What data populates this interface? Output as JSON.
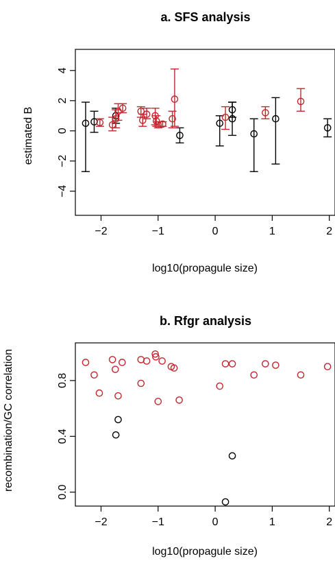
{
  "colors": {
    "black": "#000000",
    "red": "#c0272d"
  },
  "chart_data": [
    {
      "type": "scatter",
      "title": "a. SFS analysis",
      "xlabel": "log10(propagule size)",
      "ylabel": "estimated B",
      "xlim": [
        -2.45,
        2.1
      ],
      "ylim": [
        -5.6,
        5.4
      ],
      "xticks": [
        -2,
        -1,
        0,
        1,
        2
      ],
      "xtick_labels": [
        "−2",
        "−1",
        "0",
        "1",
        "2"
      ],
      "yticks": [
        -4,
        -2,
        0,
        2,
        4
      ],
      "ytick_labels": [
        "−4",
        "−2",
        "0",
        "2",
        "4"
      ],
      "grid": false,
      "series": [
        {
          "color": "black",
          "points": [
            {
              "x": -2.27,
              "y": 0.5,
              "lo": -2.7,
              "hi": 1.9
            },
            {
              "x": -2.12,
              "y": 0.6,
              "lo": -0.1,
              "hi": 1.3
            },
            {
              "x": -1.74,
              "y": 1.0,
              "lo": 0.5,
              "hi": 1.5
            },
            {
              "x": -0.62,
              "y": -0.3,
              "lo": -0.8,
              "hi": 0.2
            },
            {
              "x": 0.08,
              "y": 0.5,
              "lo": -1.0,
              "hi": 1.0
            },
            {
              "x": 0.3,
              "y": 0.8,
              "lo": -0.3,
              "hi": 1.9
            },
            {
              "x": 0.3,
              "y": 1.4,
              "lo": 0.9,
              "hi": 1.9
            },
            {
              "x": 0.68,
              "y": -0.2,
              "lo": -2.7,
              "hi": 0.8
            },
            {
              "x": 1.06,
              "y": 0.8,
              "lo": -2.2,
              "hi": 2.2
            },
            {
              "x": 1.97,
              "y": 0.2,
              "lo": -0.4,
              "hi": 0.8
            }
          ]
        },
        {
          "color": "red",
          "points": [
            {
              "x": -2.02,
              "y": 0.55,
              "lo": 0.3,
              "hi": 0.8
            },
            {
              "x": -1.8,
              "y": 0.4,
              "lo": 0.0,
              "hi": 0.9
            },
            {
              "x": -1.74,
              "y": 0.8,
              "lo": 0.2,
              "hi": 1.4
            },
            {
              "x": -1.7,
              "y": 1.3,
              "lo": 0.7,
              "hi": 1.8
            },
            {
              "x": -1.62,
              "y": 1.5,
              "lo": 1.2,
              "hi": 1.8
            },
            {
              "x": -1.3,
              "y": 1.3,
              "lo": 0.9,
              "hi": 1.6
            },
            {
              "x": -1.27,
              "y": 0.7,
              "lo": 0.3,
              "hi": 1.1
            },
            {
              "x": -1.2,
              "y": 1.1,
              "lo": 0.8,
              "hi": 1.5
            },
            {
              "x": -1.05,
              "y": 1.0,
              "lo": 0.4,
              "hi": 1.5
            },
            {
              "x": -1.03,
              "y": 0.65,
              "lo": 0.3,
              "hi": 1.0
            },
            {
              "x": -1.0,
              "y": 0.4,
              "lo": 0.2,
              "hi": 0.6
            },
            {
              "x": -0.92,
              "y": 0.45,
              "lo": 0.3,
              "hi": 0.6
            },
            {
              "x": -0.75,
              "y": 0.8,
              "lo": 0.2,
              "hi": 1.3
            },
            {
              "x": -0.71,
              "y": 2.1,
              "lo": 0.3,
              "hi": 4.1
            },
            {
              "x": 0.18,
              "y": 0.9,
              "lo": 0.1,
              "hi": 1.6
            },
            {
              "x": 0.88,
              "y": 1.2,
              "lo": 0.8,
              "hi": 1.6
            },
            {
              "x": 1.5,
              "y": 1.95,
              "lo": 1.3,
              "hi": 2.8
            }
          ]
        }
      ]
    },
    {
      "type": "scatter",
      "title": "b. Rfgr analysis",
      "xlabel": "log10(propagule size)",
      "ylabel": "recombination/GC correlation",
      "xlim": [
        -2.45,
        2.1
      ],
      "ylim": [
        -0.1,
        1.07
      ],
      "xticks": [
        -2,
        -1,
        0,
        1,
        2
      ],
      "xtick_labels": [
        "−2",
        "−1",
        "0",
        "1",
        "2"
      ],
      "yticks": [
        0.0,
        0.4,
        0.8
      ],
      "ytick_labels": [
        "0.0",
        "0.4",
        "0.8"
      ],
      "grid": false,
      "series": [
        {
          "color": "red",
          "points": [
            {
              "x": -2.27,
              "y": 0.93
            },
            {
              "x": -2.12,
              "y": 0.84
            },
            {
              "x": -2.03,
              "y": 0.71
            },
            {
              "x": -1.8,
              "y": 0.95
            },
            {
              "x": -1.75,
              "y": 0.88
            },
            {
              "x": -1.7,
              "y": 0.69
            },
            {
              "x": -1.63,
              "y": 0.93
            },
            {
              "x": -1.3,
              "y": 0.95
            },
            {
              "x": -1.3,
              "y": 0.78
            },
            {
              "x": -1.2,
              "y": 0.94
            },
            {
              "x": -1.05,
              "y": 0.99
            },
            {
              "x": -1.04,
              "y": 0.97
            },
            {
              "x": -1.0,
              "y": 0.65
            },
            {
              "x": -0.93,
              "y": 0.94
            },
            {
              "x": -0.77,
              "y": 0.9
            },
            {
              "x": -0.72,
              "y": 0.89
            },
            {
              "x": -0.63,
              "y": 0.66
            },
            {
              "x": 0.08,
              "y": 0.76
            },
            {
              "x": 0.18,
              "y": 0.92
            },
            {
              "x": 0.3,
              "y": 0.92
            },
            {
              "x": 0.68,
              "y": 0.84
            },
            {
              "x": 0.88,
              "y": 0.92
            },
            {
              "x": 1.06,
              "y": 0.91
            },
            {
              "x": 1.5,
              "y": 0.84
            },
            {
              "x": 1.97,
              "y": 0.9
            }
          ]
        },
        {
          "color": "black",
          "points": [
            {
              "x": -1.74,
              "y": 0.41
            },
            {
              "x": -1.7,
              "y": 0.52
            },
            {
              "x": 0.18,
              "y": -0.07
            },
            {
              "x": 0.3,
              "y": 0.26
            }
          ]
        }
      ]
    }
  ]
}
